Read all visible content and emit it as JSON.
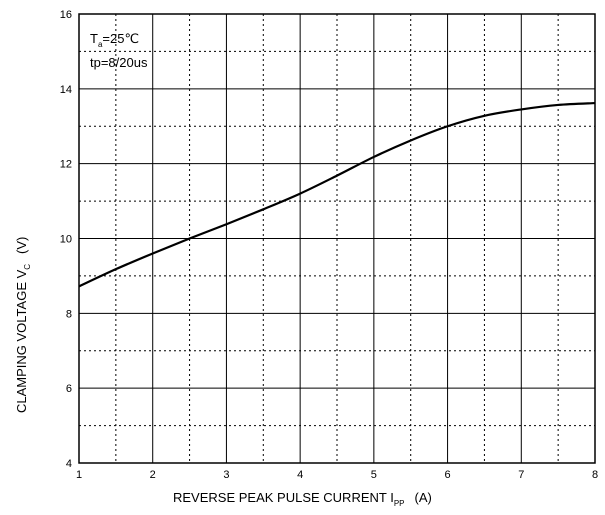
{
  "chart_data": {
    "type": "line",
    "title": "",
    "xlabel": "REVERSE PEAK PULSE CURRENT  I",
    "xlabel_sub": "PP",
    "xlabel_unit": "(A)",
    "ylabel": "CLAMPING VOLTAGE  V",
    "ylabel_sub": "C",
    "ylabel_unit": "(V)",
    "xlim": [
      1,
      8
    ],
    "ylim": [
      4,
      16
    ],
    "xticks": [
      1,
      2,
      3,
      4,
      5,
      6,
      7,
      8
    ],
    "yticks": [
      4,
      6,
      8,
      10,
      12,
      14,
      16
    ],
    "grid": true,
    "annotations": [
      {
        "main": "T",
        "sub": "a",
        "rest": "=25℃"
      },
      {
        "text": "tp=8/20us"
      }
    ],
    "series": [
      {
        "x": [
          1.0,
          1.5,
          2.0,
          2.5,
          3.0,
          3.5,
          4.0,
          4.5,
          5.0,
          5.5,
          6.0,
          6.5,
          7.0,
          7.5,
          8.0
        ],
        "y": [
          8.72,
          9.18,
          9.6,
          10.0,
          10.38,
          10.78,
          11.2,
          11.68,
          12.18,
          12.62,
          13.0,
          13.28,
          13.45,
          13.57,
          13.62
        ]
      }
    ]
  }
}
